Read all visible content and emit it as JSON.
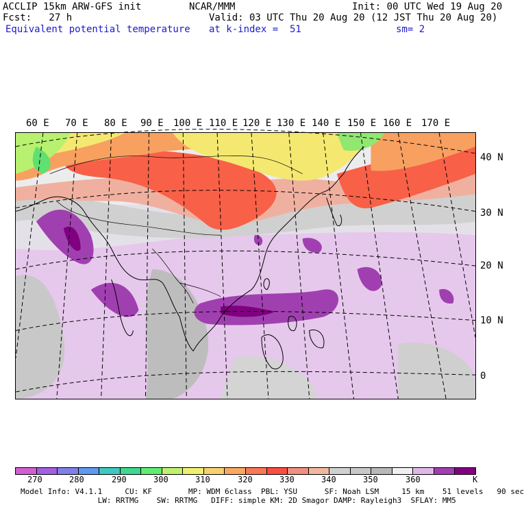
{
  "header": {
    "title_line1": "ACCLIP 15km ARW-GFS init",
    "forecast": "Fcst:   27 h",
    "field": "Equivalent potential temperature",
    "center": "NCAR/MMM",
    "init": "Init: 00 UTC Wed 19 Aug 20",
    "valid": "Valid: 03 UTC Thu 20 Aug 20 (12 JST Thu 20 Aug 20)",
    "level": "at k-index =  51",
    "smoothing": "sm= 2"
  },
  "map": {
    "lon_labels": [
      "60 E",
      "70 E",
      "80 E",
      "90 E",
      "100 E",
      "110 E",
      "120 E",
      "130 E",
      "140 E",
      "150 E",
      "160 E",
      "170 E"
    ],
    "lat_labels": [
      "40 N",
      "30 N",
      "20 N",
      "10 N",
      "0"
    ]
  },
  "colorbar": {
    "unit": "K",
    "labels": [
      "270",
      "280",
      "290",
      "300",
      "310",
      "320",
      "330",
      "340",
      "350",
      "360"
    ],
    "colors": [
      "#d060d0",
      "#a060e0",
      "#8080e8",
      "#6099f0",
      "#40c8c0",
      "#40d890",
      "#60ee70",
      "#c0f070",
      "#f0f070",
      "#f8d070",
      "#f8a860",
      "#f87858",
      "#f85040",
      "#f09080",
      "#f0b8a0",
      "#d0d0d0",
      "#c8c8c8",
      "#b8b8b8",
      "#f0f0f0",
      "#e0b8e8",
      "#a040b0",
      "#800080"
    ]
  },
  "model_info": {
    "line1": "Model Info: V4.1.1     CU: KF        MP: WDM 6class  PBL: YSU      SF: Noah LSM     15 km    51 levels   90 sec",
    "line2": "                 LW: RRTMG    SW: RRTMG   DIFF: simple KM: 2D Smagor DAMP: Rayleigh3  SFLAY: MM5"
  }
}
